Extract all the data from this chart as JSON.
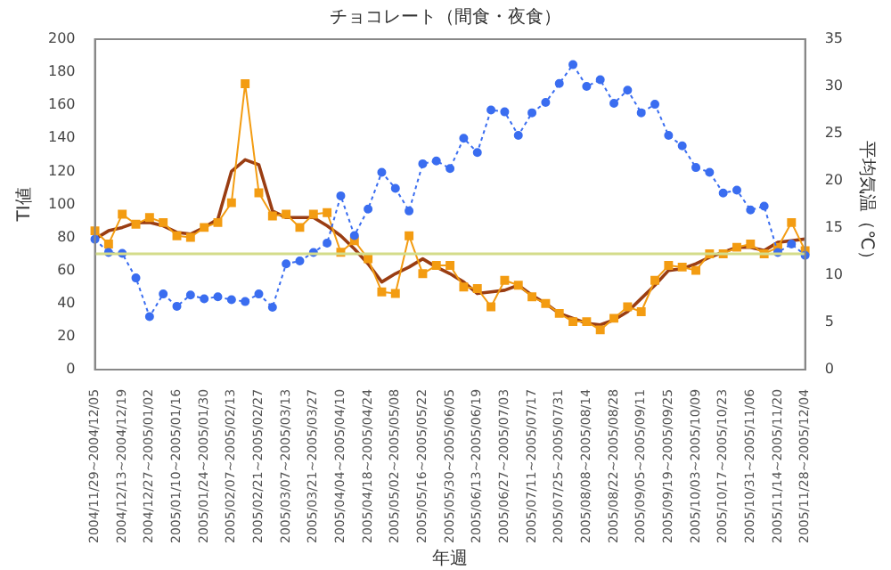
{
  "chart_data": {
    "type": "line",
    "title": "チョコレート（間食・夜食）",
    "xlabel": "年週",
    "ylabel": "TI値",
    "y2label": "平均気温（℃）",
    "categories": [
      "2004/11/29~2004/12/05",
      null,
      "2004/12/13~2004/12/19",
      null,
      "2004/12/27~2005/01/02",
      null,
      "2005/01/10~2005/01/16",
      null,
      "2005/01/24~2005/01/30",
      null,
      "2005/02/07~2005/02/13",
      null,
      "2005/02/21~2005/02/27",
      null,
      "2005/03/07~2005/03/13",
      null,
      "2005/03/21~2005/03/27",
      null,
      "2005/04/04~2005/04/10",
      null,
      "2005/04/18~2005/04/24",
      null,
      "2005/05/02~2005/05/08",
      null,
      "2005/05/16~2005/05/22",
      null,
      "2005/05/30~2005/06/05",
      null,
      "2005/06/13~2005/06/19",
      null,
      "2005/06/27~2005/07/03",
      null,
      "2005/07/11~2005/07/17",
      null,
      "2005/07/25~2005/07/31",
      null,
      "2005/08/08~2005/08/14",
      null,
      "2005/08/22~2005/08/28",
      null,
      "2005/09/05~2005/09/11",
      null,
      "2005/09/19~2005/09/25",
      null,
      "2005/10/03~2005/10/09",
      null,
      "2005/10/17~2005/10/23",
      null,
      "2005/10/31~2005/11/06",
      null,
      "2005/11/14~2005/11/20",
      null,
      "2005/11/28~2005/12/04"
    ],
    "series": [
      {
        "type": "line",
        "axis": "y2",
        "color": "#3a6df0",
        "marker": "circle",
        "line_style": "dotted",
        "values": [
          13.8,
          12.4,
          12.3,
          9.7,
          5.6,
          8,
          6.7,
          7.9,
          7.5,
          7.7,
          7.4,
          7.2,
          8,
          6.6,
          11.2,
          11.5,
          12.4,
          13.4,
          18.4,
          14.2,
          17,
          20.9,
          19.2,
          16.8,
          21.8,
          22.1,
          21.3,
          24.5,
          23,
          27.5,
          27.3,
          24.8,
          27.2,
          28.3,
          30.3,
          32.3,
          30,
          30.7,
          28.2,
          29.6,
          27.2,
          28.1,
          24.8,
          23.7,
          21.4,
          20.9,
          18.7,
          19,
          16.9,
          17.3,
          12.4,
          13.3,
          12.1
        ]
      },
      {
        "type": "line",
        "color": "#f39c12",
        "marker": "square",
        "line_style": "solid",
        "values": [
          84,
          76,
          94,
          88,
          92,
          89,
          81,
          80,
          86,
          89,
          101,
          173,
          107,
          93,
          94,
          86,
          94,
          95,
          71,
          78,
          67,
          47,
          46,
          81,
          58,
          63,
          63,
          50,
          49,
          38,
          54,
          51,
          44,
          40,
          34,
          29,
          29,
          24,
          31,
          38,
          35,
          54,
          63,
          62,
          60,
          70,
          70,
          74,
          76,
          70,
          74,
          89,
          72
        ]
      },
      {
        "type": "line",
        "color": "#9a3d12",
        "marker": "none",
        "line_style": "solid",
        "values": [
          79,
          84,
          86,
          89,
          89,
          87,
          83,
          82,
          86,
          91,
          120,
          127,
          124,
          96,
          92,
          92,
          92,
          87,
          81,
          73,
          64,
          53,
          58,
          62,
          67,
          62,
          58,
          53,
          46,
          47,
          48,
          51,
          45,
          40,
          34,
          31,
          28,
          27,
          30,
          35,
          43,
          51,
          60,
          61,
          64,
          68,
          71,
          74,
          74,
          72,
          77,
          78,
          79
        ]
      }
    ],
    "ylim": [
      0,
      200
    ],
    "yticks": [
      0,
      20,
      40,
      60,
      80,
      100,
      120,
      140,
      160,
      180,
      200
    ],
    "y2lim": [
      0,
      35
    ],
    "y2ticks": [
      0,
      5,
      10,
      15,
      20,
      25,
      30,
      35
    ],
    "ref_lines": [
      {
        "axis": "y",
        "value": 70,
        "color": "#d4dc8a"
      }
    ]
  }
}
